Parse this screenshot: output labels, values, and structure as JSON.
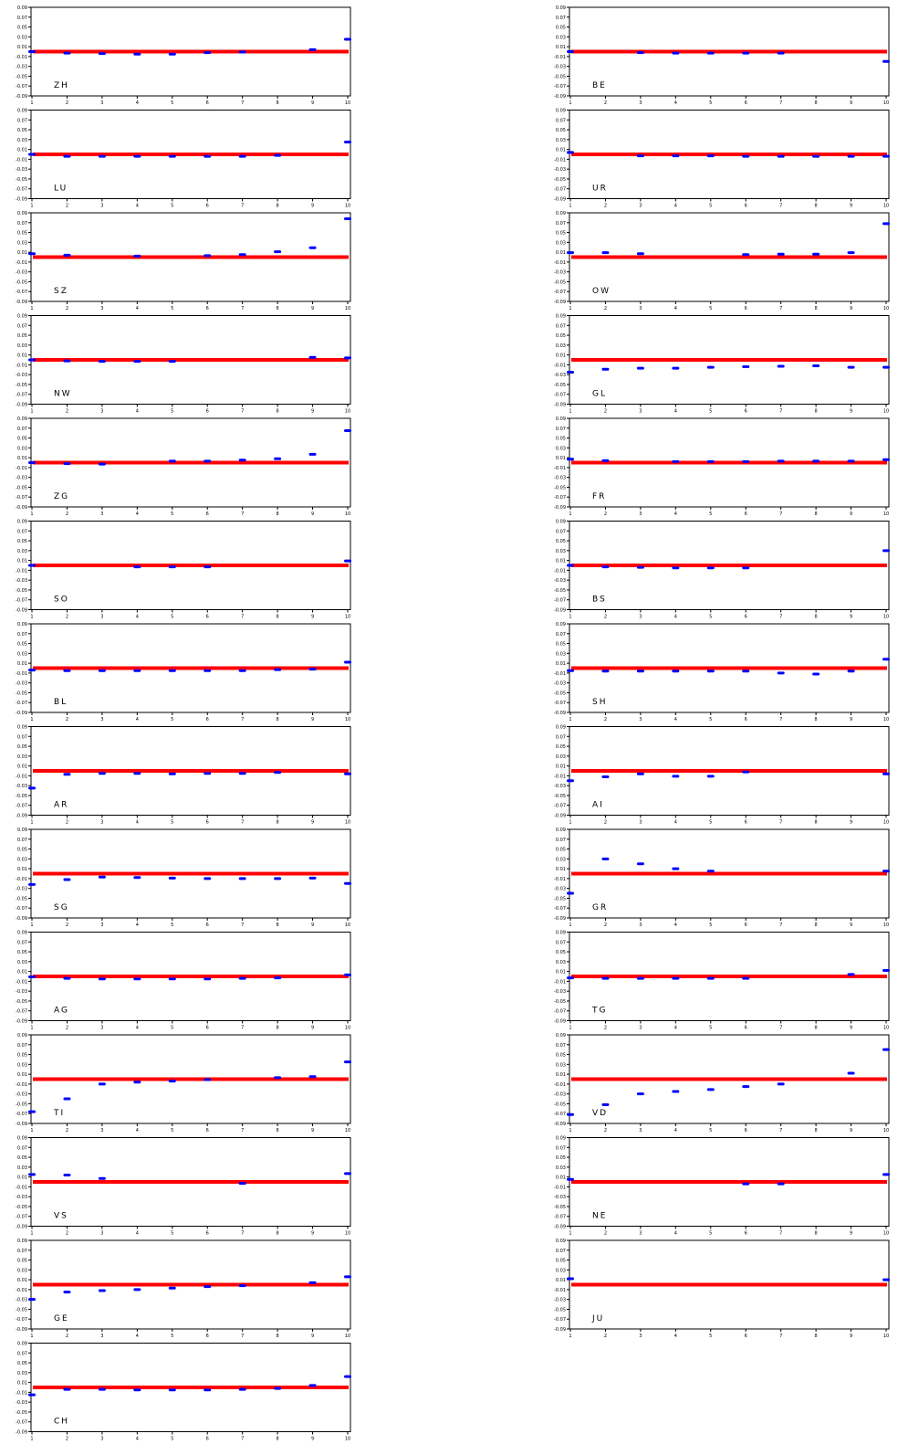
{
  "chart_data": {
    "type": "scatter",
    "panels_layout": "two-column grid of small multiples",
    "shared_axes": {
      "x_ticks": [
        "1",
        "2",
        "3",
        "4",
        "5",
        "6",
        "7",
        "8",
        "9",
        "10"
      ],
      "xlim": [
        1,
        10
      ],
      "y_ticks": [
        "0.09",
        "0.07",
        "0.05",
        "0.03",
        "0.01",
        "-0.01",
        "-0.03",
        "-0.05",
        "-0.07",
        "-0.09"
      ],
      "ylim": [
        -0.09,
        0.09
      ],
      "reference_y": 0.0,
      "reference_color": "#ff0000",
      "point_color": "#0000ff",
      "grid": false
    },
    "panels": [
      {
        "label": "ZH",
        "values": [
          0.0,
          -0.003,
          -0.004,
          -0.005,
          -0.005,
          -0.002,
          -0.001,
          null,
          0.004,
          0.025
        ]
      },
      {
        "label": "LU",
        "values": [
          0.0,
          -0.004,
          -0.004,
          -0.004,
          -0.004,
          -0.004,
          -0.004,
          -0.002,
          null,
          0.025
        ]
      },
      {
        "label": "SZ",
        "values": [
          0.007,
          0.004,
          null,
          0.002,
          null,
          0.003,
          0.005,
          0.011,
          0.019,
          0.078
        ]
      },
      {
        "label": "NW",
        "values": [
          0.0,
          -0.002,
          -0.003,
          -0.003,
          -0.003,
          null,
          null,
          null,
          0.005,
          0.004
        ]
      },
      {
        "label": "ZG",
        "values": [
          0.0,
          -0.002,
          -0.003,
          null,
          0.003,
          0.003,
          0.005,
          0.008,
          0.017,
          0.065
        ]
      },
      {
        "label": "SO",
        "values": [
          0.0,
          null,
          null,
          -0.003,
          -0.003,
          -0.003,
          null,
          null,
          null,
          0.009
        ]
      },
      {
        "label": "BL",
        "values": [
          -0.004,
          -0.005,
          -0.005,
          -0.005,
          -0.005,
          -0.005,
          -0.005,
          -0.003,
          -0.002,
          0.012
        ]
      },
      {
        "label": "AR",
        "values": [
          -0.035,
          -0.007,
          -0.005,
          -0.005,
          -0.006,
          -0.005,
          -0.005,
          -0.003,
          null,
          -0.006
        ]
      },
      {
        "label": "SG",
        "values": [
          -0.022,
          -0.012,
          -0.007,
          -0.008,
          -0.009,
          -0.01,
          -0.01,
          -0.01,
          -0.009,
          -0.02
        ]
      },
      {
        "label": "AG",
        "values": [
          -0.001,
          -0.004,
          -0.005,
          -0.005,
          -0.005,
          -0.005,
          -0.004,
          -0.003,
          null,
          0.003
        ]
      },
      {
        "label": "TI",
        "values": [
          -0.066,
          -0.04,
          -0.01,
          -0.006,
          -0.004,
          -0.001,
          null,
          0.003,
          0.005,
          0.035
        ]
      },
      {
        "label": "VS",
        "values": [
          0.015,
          0.014,
          0.007,
          null,
          null,
          null,
          -0.003,
          null,
          null,
          0.017
        ]
      },
      {
        "label": "GE",
        "values": [
          -0.03,
          -0.015,
          -0.012,
          -0.01,
          -0.007,
          -0.004,
          -0.002,
          null,
          0.004,
          0.016
        ]
      },
      {
        "label": "CH",
        "values": [
          -0.015,
          -0.004,
          -0.004,
          -0.005,
          -0.005,
          -0.005,
          -0.004,
          -0.002,
          0.004,
          0.022
        ]
      },
      {
        "label": "BE",
        "values": [
          0.0,
          null,
          -0.002,
          -0.003,
          -0.003,
          -0.003,
          -0.003,
          null,
          null,
          -0.02
        ]
      },
      {
        "label": "UR",
        "values": [
          0.004,
          null,
          -0.003,
          -0.003,
          -0.003,
          -0.004,
          -0.004,
          -0.004,
          -0.004,
          -0.004
        ]
      },
      {
        "label": "OW",
        "values": [
          0.009,
          0.009,
          0.007,
          null,
          null,
          0.005,
          0.006,
          0.006,
          0.009,
          0.068
        ]
      },
      {
        "label": "GL",
        "values": [
          -0.025,
          -0.019,
          -0.017,
          -0.017,
          -0.015,
          -0.014,
          -0.013,
          -0.012,
          -0.015,
          -0.015
        ]
      },
      {
        "label": "FR",
        "values": [
          0.007,
          0.004,
          null,
          0.002,
          0.002,
          0.002,
          0.003,
          0.003,
          0.003,
          0.006
        ]
      },
      {
        "label": "BS",
        "values": [
          0.0,
          -0.003,
          -0.004,
          -0.005,
          -0.005,
          -0.005,
          null,
          null,
          null,
          0.03
        ]
      },
      {
        "label": "SH",
        "values": [
          -0.005,
          -0.006,
          -0.006,
          -0.006,
          -0.006,
          -0.006,
          -0.01,
          -0.012,
          -0.006,
          0.018
        ]
      },
      {
        "label": "AI",
        "values": [
          -0.02,
          -0.012,
          -0.006,
          -0.011,
          -0.011,
          -0.002,
          null,
          null,
          null,
          -0.006
        ]
      },
      {
        "label": "GR",
        "values": [
          -0.04,
          0.03,
          0.02,
          0.01,
          0.005,
          null,
          null,
          null,
          null,
          0.005
        ]
      },
      {
        "label": "TG",
        "values": [
          -0.003,
          -0.004,
          -0.004,
          -0.004,
          -0.004,
          -0.004,
          null,
          null,
          0.004,
          0.012
        ]
      },
      {
        "label": "VD",
        "values": [
          -0.072,
          -0.052,
          -0.03,
          -0.025,
          -0.021,
          -0.015,
          -0.01,
          null,
          0.012,
          0.06
        ]
      },
      {
        "label": "NE",
        "values": [
          0.005,
          null,
          null,
          null,
          null,
          -0.004,
          -0.004,
          null,
          null,
          0.015
        ]
      },
      {
        "label": "JU",
        "values": [
          0.012,
          null,
          null,
          null,
          null,
          null,
          null,
          null,
          null,
          0.01
        ]
      }
    ]
  }
}
